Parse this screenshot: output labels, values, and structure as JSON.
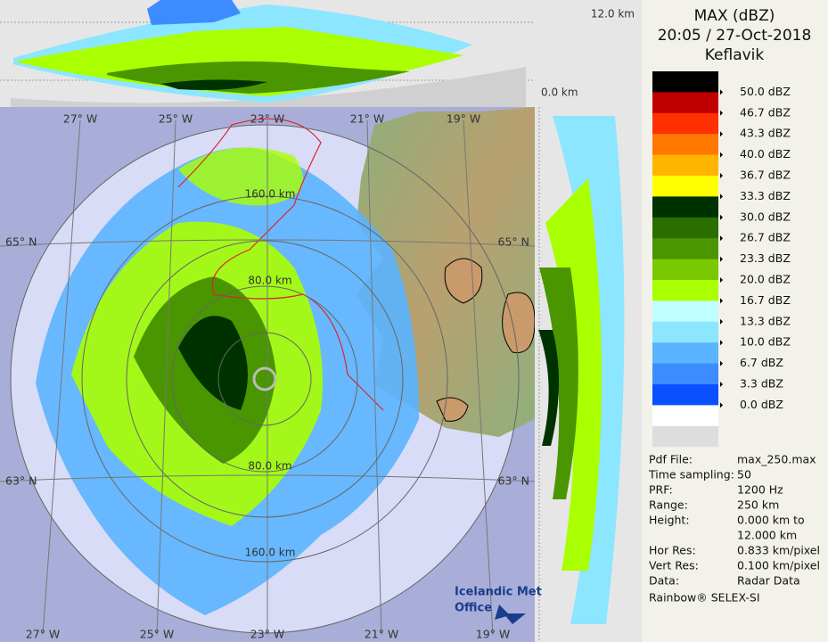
{
  "header": {
    "title": "MAX (dBZ)",
    "time": "20:05 / 27-Oct-2018",
    "site": "Keflavik"
  },
  "legend": {
    "bands": [
      "#000000",
      "#c00000",
      "#ff3000",
      "#ff7800",
      "#ffb400",
      "#ffff00",
      "#003200",
      "#2a6e00",
      "#4a9600",
      "#7ac800",
      "#aaff00",
      "#bfffff",
      "#8ce6ff",
      "#5ab4ff",
      "#3c8cff",
      "#0a50ff",
      "#ffffff"
    ],
    "labels": [
      "50.0 dBZ",
      "46.7 dBZ",
      "43.3 dBZ",
      "40.0 dBZ",
      "36.7 dBZ",
      "33.3 dBZ",
      "30.0 dBZ",
      "26.7 dBZ",
      "23.3 dBZ",
      "20.0 dBZ",
      "16.7 dBZ",
      "13.3 dBZ",
      "10.0 dBZ",
      "6.7 dBZ",
      "3.3 dBZ",
      "0.0 dBZ"
    ]
  },
  "info": {
    "rows": [
      {
        "label": "Pdf File:",
        "value": [
          "max_250.max"
        ]
      },
      {
        "label": "Time sampling:",
        "value": [
          "50"
        ]
      },
      {
        "label": "PRF:",
        "value": [
          "1200 Hz"
        ]
      },
      {
        "label": "Range:",
        "value": [
          "250 km"
        ]
      },
      {
        "label": "Height:",
        "value": [
          "0.000 km to",
          "12.000 km"
        ]
      },
      {
        "label": "Hor Res:",
        "value": [
          "0.833 km/pixel"
        ]
      },
      {
        "label": "Vert Res:",
        "value": [
          "0.100 km/pixel"
        ]
      },
      {
        "label": "Data:",
        "value": [
          "Radar Data"
        ]
      }
    ],
    "footer": "Rainbow® SELEX-SI"
  },
  "heights": {
    "top": "12.0 km",
    "bottom": "0.0 km"
  },
  "map": {
    "lon_top": [
      "27° W",
      "25° W",
      "23° W",
      "21° W",
      "19° W"
    ],
    "lon_bottom": [
      "27° W",
      "25° W",
      "23° W",
      "21° W",
      "19° W"
    ],
    "lat_left": [
      "65° N",
      "63° N"
    ],
    "lat_right": [
      "65° N",
      "63° N"
    ],
    "ranges": [
      "160.0 km",
      "80.0 km",
      "80.0 km",
      "160.0 km"
    ],
    "logo": [
      "Icelandic Met",
      "Office"
    ]
  }
}
